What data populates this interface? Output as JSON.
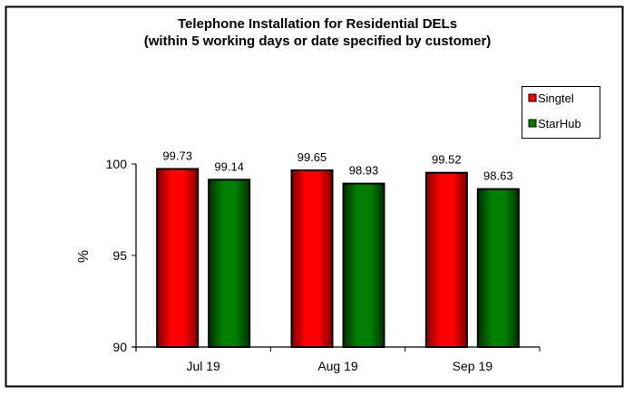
{
  "chart_data": {
    "type": "bar",
    "title": "Telephone Installation for Residential DELs",
    "subtitle": "(within 5 working days or date specified by customer)",
    "xlabel": "",
    "ylabel": "%",
    "ylim": [
      90,
      100
    ],
    "yticks": [
      "90",
      "95",
      "100"
    ],
    "categories": [
      "Jul 19",
      "Aug 19",
      "Sep 19"
    ],
    "series": [
      {
        "name": "Singtel",
        "color": "#ff0000",
        "dark": "#800000",
        "values": [
          99.73,
          99.65,
          99.52
        ],
        "labels": [
          "99.73",
          "99.65",
          "99.52"
        ]
      },
      {
        "name": "StarHub",
        "color": "#008000",
        "dark": "#003300",
        "values": [
          99.14,
          98.93,
          98.63
        ],
        "labels": [
          "99.14",
          "98.93",
          "98.63"
        ]
      }
    ],
    "legend_position": "right",
    "grid": false
  }
}
